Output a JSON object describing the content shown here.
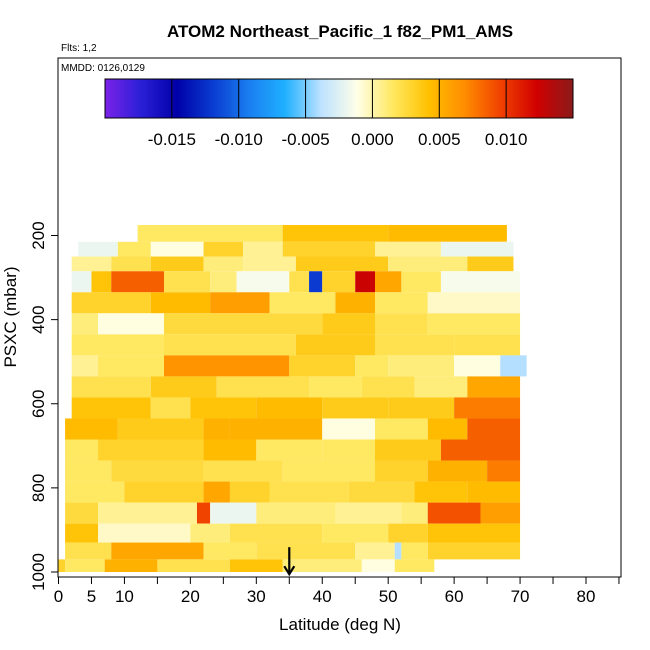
{
  "chart_data": {
    "type": "heatmap",
    "title": "ATOM2 Northeast_Pacific_1 f82_PM1_AMS",
    "flights_label": "Flts: 1,2",
    "dates_label": "MMDD: 0126,0129",
    "xlabel": "Latitude (deg N)",
    "ylabel": "PSXC (mbar)",
    "xlim": [
      0,
      85
    ],
    "ylim": [
      1000,
      100
    ],
    "x_ticks": [
      0,
      5,
      10,
      20,
      30,
      40,
      50,
      60,
      70,
      80
    ],
    "x_tick_labels": [
      "0",
      "5",
      "10",
      "20",
      "30",
      "40",
      "50",
      "60",
      "70",
      "80"
    ],
    "x_minor_ticks": [
      15,
      25,
      35,
      45,
      55,
      65,
      75,
      85
    ],
    "y_ticks": [
      200,
      400,
      600,
      800,
      1000
    ],
    "y_tick_labels": [
      "200",
      "400",
      "600",
      "800",
      "1000"
    ],
    "colorbar": {
      "range": [
        -0.02,
        0.015
      ],
      "ticks": [
        -0.015,
        -0.01,
        -0.005,
        0.0,
        0.005,
        0.01
      ],
      "tick_labels": [
        "-0.015",
        "-0.010",
        "-0.005",
        "0.000",
        "0.005",
        "0.010"
      ],
      "colors": [
        "#7b22e8",
        "#2a1fd6",
        "#0000a8",
        "#0a3cd0",
        "#1a7ef0",
        "#1fb0ff",
        "#bde2ff",
        "#ffffe8",
        "#ffe860",
        "#ffc000",
        "#ff8c00",
        "#f04000",
        "#d00000",
        "#8b1a1a"
      ]
    },
    "marker": {
      "x": 35,
      "y": 960
    },
    "rows": [
      {
        "p": [
          175,
          215
        ],
        "segs": [
          [
            12,
            34,
            0.0015
          ],
          [
            34,
            50,
            0.004
          ],
          [
            50,
            68,
            0.0045
          ]
        ]
      },
      {
        "p": [
          215,
          250
        ],
        "segs": [
          [
            3,
            9,
            -0.002
          ],
          [
            9,
            14,
            0.0015
          ],
          [
            14,
            22,
            -0.001
          ],
          [
            22,
            28,
            0.003
          ],
          [
            28,
            34,
            0.0005
          ],
          [
            34,
            48,
            0.003
          ],
          [
            48,
            58,
            0.0005
          ],
          [
            58,
            69,
            -0.002
          ]
        ]
      },
      {
        "p": [
          250,
          285
        ],
        "segs": [
          [
            2,
            8,
            0.0005
          ],
          [
            8,
            14,
            0.002
          ],
          [
            14,
            22,
            0.0035
          ],
          [
            22,
            28,
            0.001
          ],
          [
            28,
            36,
            0.0005
          ],
          [
            36,
            50,
            0.0035
          ],
          [
            50,
            62,
            0.001
          ],
          [
            62,
            69,
            0.0035
          ]
        ]
      },
      {
        "p": [
          285,
          335
        ],
        "segs": [
          [
            2,
            5,
            -0.002
          ],
          [
            5,
            8,
            0.004
          ],
          [
            8,
            16,
            0.0085
          ],
          [
            16,
            23,
            0.002
          ],
          [
            23,
            27,
            0.001
          ],
          [
            27,
            35,
            -0.0015
          ],
          [
            35,
            38,
            0.002
          ],
          [
            38,
            40,
            -0.012
          ],
          [
            40,
            45,
            0.003
          ],
          [
            45,
            48,
            0.0125
          ],
          [
            48,
            52,
            0.0055
          ],
          [
            52,
            58,
            0.0015
          ],
          [
            58,
            70,
            -0.0015
          ]
        ]
      },
      {
        "p": [
          335,
          385
        ],
        "segs": [
          [
            2,
            14,
            0.003
          ],
          [
            14,
            23,
            0.0045
          ],
          [
            23,
            32,
            0.006
          ],
          [
            32,
            42,
            0.0015
          ],
          [
            42,
            48,
            0.005
          ],
          [
            48,
            56,
            0.0015
          ],
          [
            56,
            70,
            -0.0005
          ]
        ]
      },
      {
        "p": [
          385,
          435
        ],
        "segs": [
          [
            2,
            6,
            0.001
          ],
          [
            6,
            16,
            -0.001
          ],
          [
            16,
            40,
            0.0025
          ],
          [
            40,
            48,
            0.0035
          ],
          [
            48,
            56,
            0.002
          ],
          [
            56,
            70,
            0.0015
          ]
        ]
      },
      {
        "p": [
          435,
          485
        ],
        "segs": [
          [
            2,
            16,
            0.0015
          ],
          [
            16,
            36,
            0.002
          ],
          [
            36,
            48,
            0.0035
          ],
          [
            48,
            60,
            0.002
          ],
          [
            60,
            70,
            0.002
          ]
        ]
      },
      {
        "p": [
          485,
          535
        ],
        "segs": [
          [
            2,
            6,
            0.0005
          ],
          [
            6,
            16,
            0.0015
          ],
          [
            16,
            35,
            0.0065
          ],
          [
            35,
            45,
            0.003
          ],
          [
            45,
            50,
            0.0015
          ],
          [
            50,
            60,
            0.001
          ],
          [
            60,
            67,
            -0.001
          ],
          [
            67,
            71,
            -0.004
          ]
        ]
      },
      {
        "p": [
          535,
          585
        ],
        "segs": [
          [
            2,
            14,
            0.002
          ],
          [
            14,
            24,
            0.0035
          ],
          [
            24,
            38,
            0.002
          ],
          [
            38,
            46,
            0.0015
          ],
          [
            46,
            54,
            0.002
          ],
          [
            54,
            62,
            0.001
          ],
          [
            62,
            70,
            0.0055
          ]
        ]
      },
      {
        "p": [
          585,
          635
        ],
        "segs": [
          [
            2,
            14,
            0.004
          ],
          [
            14,
            20,
            0.002
          ],
          [
            20,
            30,
            0.004
          ],
          [
            30,
            40,
            0.0045
          ],
          [
            40,
            50,
            0.0035
          ],
          [
            50,
            60,
            0.0035
          ],
          [
            60,
            70,
            0.0075
          ]
        ]
      },
      {
        "p": [
          635,
          685
        ],
        "segs": [
          [
            1,
            9,
            0.0045
          ],
          [
            9,
            22,
            0.0035
          ],
          [
            22,
            26,
            0.005
          ],
          [
            26,
            40,
            0.005
          ],
          [
            40,
            48,
            -0.001
          ],
          [
            48,
            56,
            0.0015
          ],
          [
            56,
            62,
            0.0045
          ],
          [
            62,
            70,
            0.0085
          ]
        ]
      },
      {
        "p": [
          685,
          735
        ],
        "segs": [
          [
            1,
            6,
            0.0015
          ],
          [
            6,
            22,
            0.003
          ],
          [
            22,
            30,
            0.0045
          ],
          [
            30,
            40,
            0.0015
          ],
          [
            40,
            48,
            0.0015
          ],
          [
            48,
            58,
            0.0035
          ],
          [
            58,
            70,
            0.0085
          ]
        ]
      },
      {
        "p": [
          735,
          785
        ],
        "segs": [
          [
            1,
            8,
            0.0015
          ],
          [
            8,
            22,
            0.0025
          ],
          [
            22,
            34,
            0.002
          ],
          [
            34,
            48,
            0.0015
          ],
          [
            48,
            56,
            0.003
          ],
          [
            56,
            65,
            0.005
          ],
          [
            65,
            70,
            0.0075
          ]
        ]
      },
      {
        "p": [
          785,
          835
        ],
        "segs": [
          [
            1,
            10,
            0.0015
          ],
          [
            10,
            22,
            0.003
          ],
          [
            22,
            26,
            0.0055
          ],
          [
            26,
            32,
            0.003
          ],
          [
            32,
            44,
            0.002
          ],
          [
            44,
            54,
            0.0025
          ],
          [
            54,
            62,
            0.004
          ],
          [
            62,
            70,
            0.0045
          ]
        ]
      },
      {
        "p": [
          835,
          885
        ],
        "segs": [
          [
            1,
            6,
            0.0025
          ],
          [
            6,
            21,
            0.0005
          ],
          [
            21,
            23,
            0.0095
          ],
          [
            23,
            30,
            -0.002
          ],
          [
            30,
            42,
            0.001
          ],
          [
            42,
            52,
            0.0005
          ],
          [
            52,
            56,
            0.001
          ],
          [
            56,
            64,
            0.009
          ],
          [
            64,
            70,
            0.006
          ]
        ]
      },
      {
        "p": [
          885,
          930
        ],
        "segs": [
          [
            1,
            6,
            0.004
          ],
          [
            6,
            20,
            -0.0005
          ],
          [
            20,
            26,
            0.001
          ],
          [
            26,
            40,
            0.002
          ],
          [
            40,
            50,
            0.0015
          ],
          [
            50,
            56,
            0.003
          ],
          [
            56,
            70,
            0.004
          ]
        ]
      },
      {
        "p": [
          930,
          970
        ],
        "segs": [
          [
            1,
            8,
            0.002
          ],
          [
            8,
            22,
            0.0055
          ],
          [
            22,
            30,
            0.0015
          ],
          [
            30,
            45,
            0.002
          ],
          [
            45,
            51,
            0.0005
          ],
          [
            51,
            52,
            -0.004
          ],
          [
            52,
            56,
            0.0015
          ],
          [
            56,
            70,
            0.003
          ]
        ]
      },
      {
        "p": [
          970,
          1000
        ],
        "segs": [
          [
            0,
            1,
            0.003
          ],
          [
            1,
            7,
            0.0015
          ],
          [
            7,
            15,
            0.005
          ],
          [
            15,
            26,
            0.002
          ],
          [
            26,
            34,
            0.004
          ],
          [
            34,
            46,
            0.001
          ],
          [
            46,
            51,
            -0.001
          ],
          [
            51,
            57,
            0.0015
          ]
        ]
      }
    ]
  }
}
